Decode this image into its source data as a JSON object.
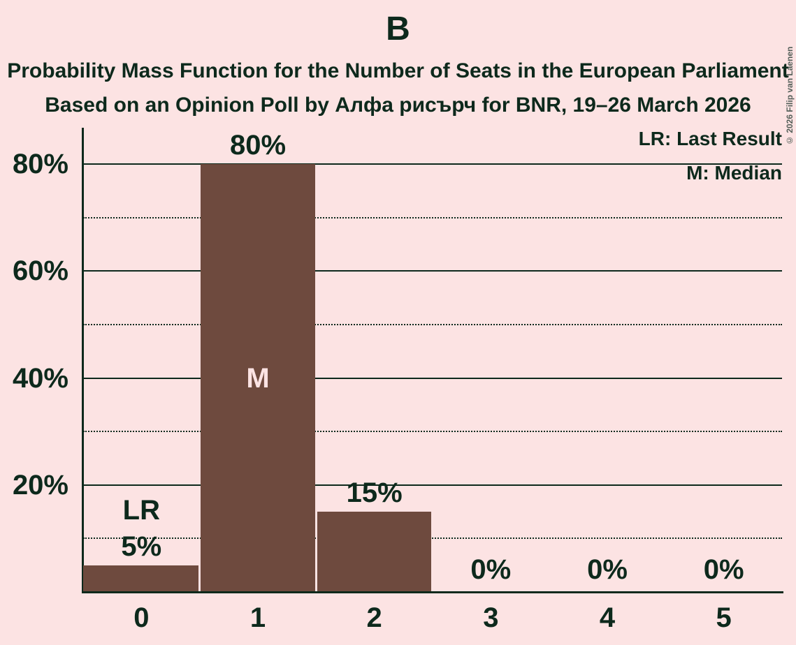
{
  "title": "B",
  "subtitle": "Probability Mass Function for the Number of Seats in the European Parliament",
  "subsubtitle": "Based on an Opinion Poll by Алфа рисърч for BNR, 19–26 March 2026",
  "copyright": "© 2026 Filip van Laenen",
  "legend": {
    "last_result": "LR: Last Result",
    "median": "M: Median"
  },
  "colors": {
    "background": "#fce3e3",
    "bar": "#6e4a3e",
    "text": "#0d291c",
    "annotation_inside_bar": "#fce3e3",
    "copyright_text": "#55605a"
  },
  "chart_data": {
    "type": "bar",
    "title": "B",
    "categories": [
      "0",
      "1",
      "2",
      "3",
      "4",
      "5"
    ],
    "values": [
      5,
      80,
      15,
      0,
      0,
      0
    ],
    "bar_labels": [
      "5%",
      "80%",
      "15%",
      "0%",
      "0%",
      "0%"
    ],
    "annotations": [
      {
        "category": "0",
        "text": "LR",
        "meaning": "Last Result",
        "position": "above-label"
      },
      {
        "category": "1",
        "text": "M",
        "meaning": "Median",
        "position": "inside-bar"
      }
    ],
    "xlabel": "",
    "ylabel": "",
    "y_tick_labels": [
      "20%",
      "40%",
      "60%",
      "80%"
    ],
    "y_tick_values": [
      20,
      40,
      60,
      80
    ],
    "ylim": [
      0,
      87
    ],
    "grid": {
      "solid_every_pct": 20,
      "dotted_every_pct": 10,
      "orientation": "horizontal"
    },
    "legend_position": "top-right"
  }
}
